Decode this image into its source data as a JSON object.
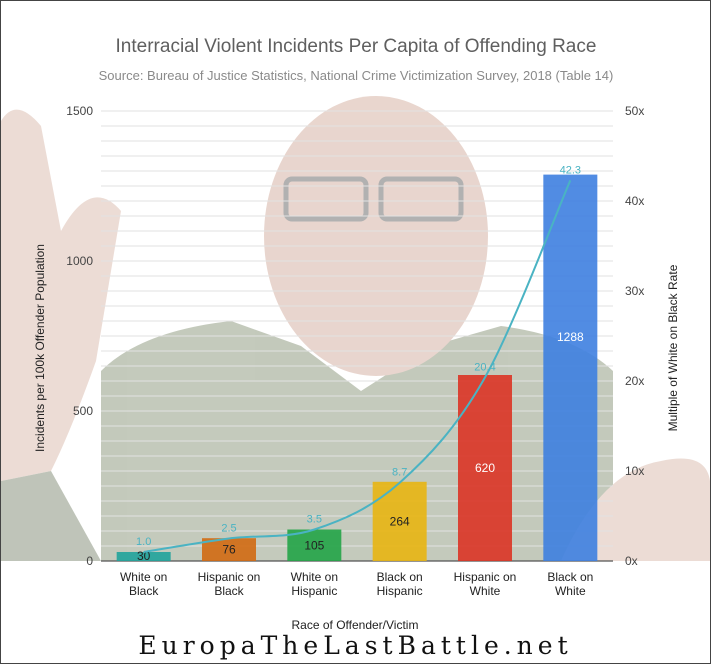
{
  "chart_data": {
    "type": "bar",
    "title": "Interracial Violent Incidents Per Capita of Offending Race",
    "subtitle": "Source: Bureau of Justice Statistics, National Crime Victimization Survey, 2018 (Table 14)",
    "xlabel": "Race of Offender/Victim",
    "ylabel": "Incidents per 100k Offender Population",
    "y2label": "Multiple of White on Black Rate",
    "ylim": [
      0,
      1500
    ],
    "y2lim": [
      0,
      50
    ],
    "yticks": [
      "0",
      "500",
      "1000",
      "1500"
    ],
    "y2ticks": [
      "0x",
      "10x",
      "20x",
      "30x",
      "40x",
      "50x"
    ],
    "categories": [
      [
        "White on",
        "Black"
      ],
      [
        "Hispanic on",
        "Black"
      ],
      [
        "White on",
        "Hispanic"
      ],
      [
        "Black on",
        "Hispanic"
      ],
      [
        "Hispanic on",
        "White"
      ],
      [
        "Black on",
        "White"
      ]
    ],
    "values": [
      30,
      76,
      105,
      264,
      620,
      1288
    ],
    "bar_labels": [
      "30",
      "76",
      "105",
      "264",
      "620",
      "1288"
    ],
    "bar_colors": [
      "#20a39b",
      "#d26a12",
      "#23a447",
      "#e8b512",
      "#db3425",
      "#3e7fe0"
    ],
    "line_values": [
      1.0,
      2.5,
      3.5,
      8.7,
      20.4,
      42.3
    ],
    "line_labels": [
      "1.0",
      "2.5",
      "3.5",
      "8.7",
      "20.4",
      "42.3"
    ],
    "line_color": "#4ab3c3",
    "grid": true
  },
  "watermark": "EuropaTheLastBattle.net"
}
